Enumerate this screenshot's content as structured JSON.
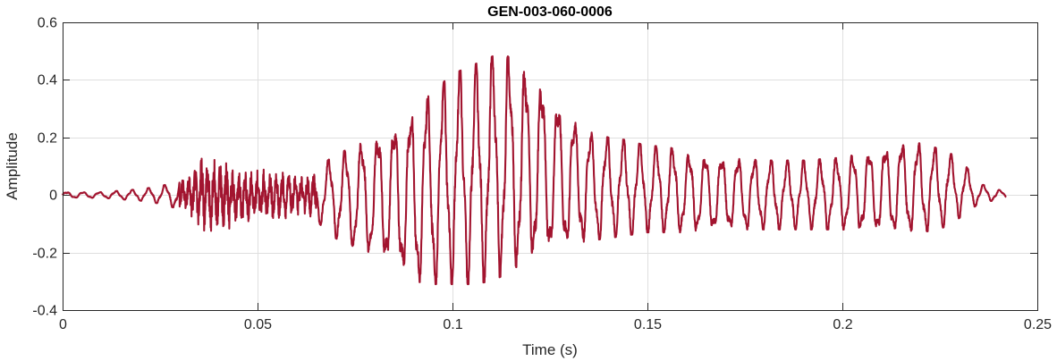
{
  "chart_data": {
    "type": "line",
    "title": "GEN-003-060-0006",
    "xlabel": "Time (s)",
    "ylabel": "Amplitude",
    "xlim": [
      0,
      0.25
    ],
    "ylim": [
      -0.4,
      0.6
    ],
    "xticks": [
      0,
      0.05,
      0.1,
      0.15,
      0.2,
      0.25
    ],
    "xtick_labels": [
      "0",
      "0.05",
      "0.1",
      "0.15",
      "0.2",
      "0.25"
    ],
    "yticks": [
      -0.4,
      -0.2,
      0,
      0.2,
      0.4,
      0.6
    ],
    "ytick_labels": [
      "-0.4",
      "-0.2",
      "0",
      "0.2",
      "0.4",
      "0.6"
    ],
    "grid": true,
    "line_color": "#a2142f",
    "series": [
      {
        "x": [
          0.0,
          0.01,
          0.02,
          0.025,
          0.03,
          0.033,
          0.036,
          0.04,
          0.045,
          0.05,
          0.055,
          0.06,
          0.063,
          0.065,
          0.07,
          0.075,
          0.08,
          0.085,
          0.09,
          0.095,
          0.1,
          0.105,
          0.11,
          0.113,
          0.115,
          0.118,
          0.12,
          0.125,
          0.13,
          0.135,
          0.14,
          0.145,
          0.15,
          0.155,
          0.16,
          0.17,
          0.18,
          0.19,
          0.2,
          0.21,
          0.215,
          0.22,
          0.225,
          0.23,
          0.235,
          0.242
        ],
        "envelope_max": [
          0.01,
          0.01,
          0.02,
          0.03,
          0.05,
          0.08,
          0.14,
          0.14,
          0.09,
          0.09,
          0.09,
          0.07,
          0.07,
          0.09,
          0.14,
          0.17,
          0.2,
          0.24,
          0.29,
          0.36,
          0.42,
          0.45,
          0.48,
          0.5,
          0.47,
          0.44,
          0.42,
          0.35,
          0.27,
          0.22,
          0.2,
          0.19,
          0.17,
          0.17,
          0.14,
          0.13,
          0.12,
          0.12,
          0.13,
          0.16,
          0.18,
          0.18,
          0.16,
          0.13,
          0.04,
          0.01
        ],
        "envelope_min": [
          -0.01,
          -0.01,
          -0.02,
          -0.03,
          -0.05,
          -0.08,
          -0.13,
          -0.13,
          -0.11,
          -0.09,
          -0.09,
          -0.07,
          -0.07,
          -0.09,
          -0.15,
          -0.19,
          -0.21,
          -0.24,
          -0.3,
          -0.31,
          -0.31,
          -0.31,
          -0.3,
          -0.28,
          -0.26,
          -0.24,
          -0.22,
          -0.2,
          -0.17,
          -0.16,
          -0.15,
          -0.14,
          -0.13,
          -0.13,
          -0.13,
          -0.12,
          -0.12,
          -0.12,
          -0.12,
          -0.13,
          -0.13,
          -0.13,
          -0.12,
          -0.08,
          -0.03,
          -0.01
        ],
        "dominant_period_s": 0.0042
      }
    ]
  }
}
